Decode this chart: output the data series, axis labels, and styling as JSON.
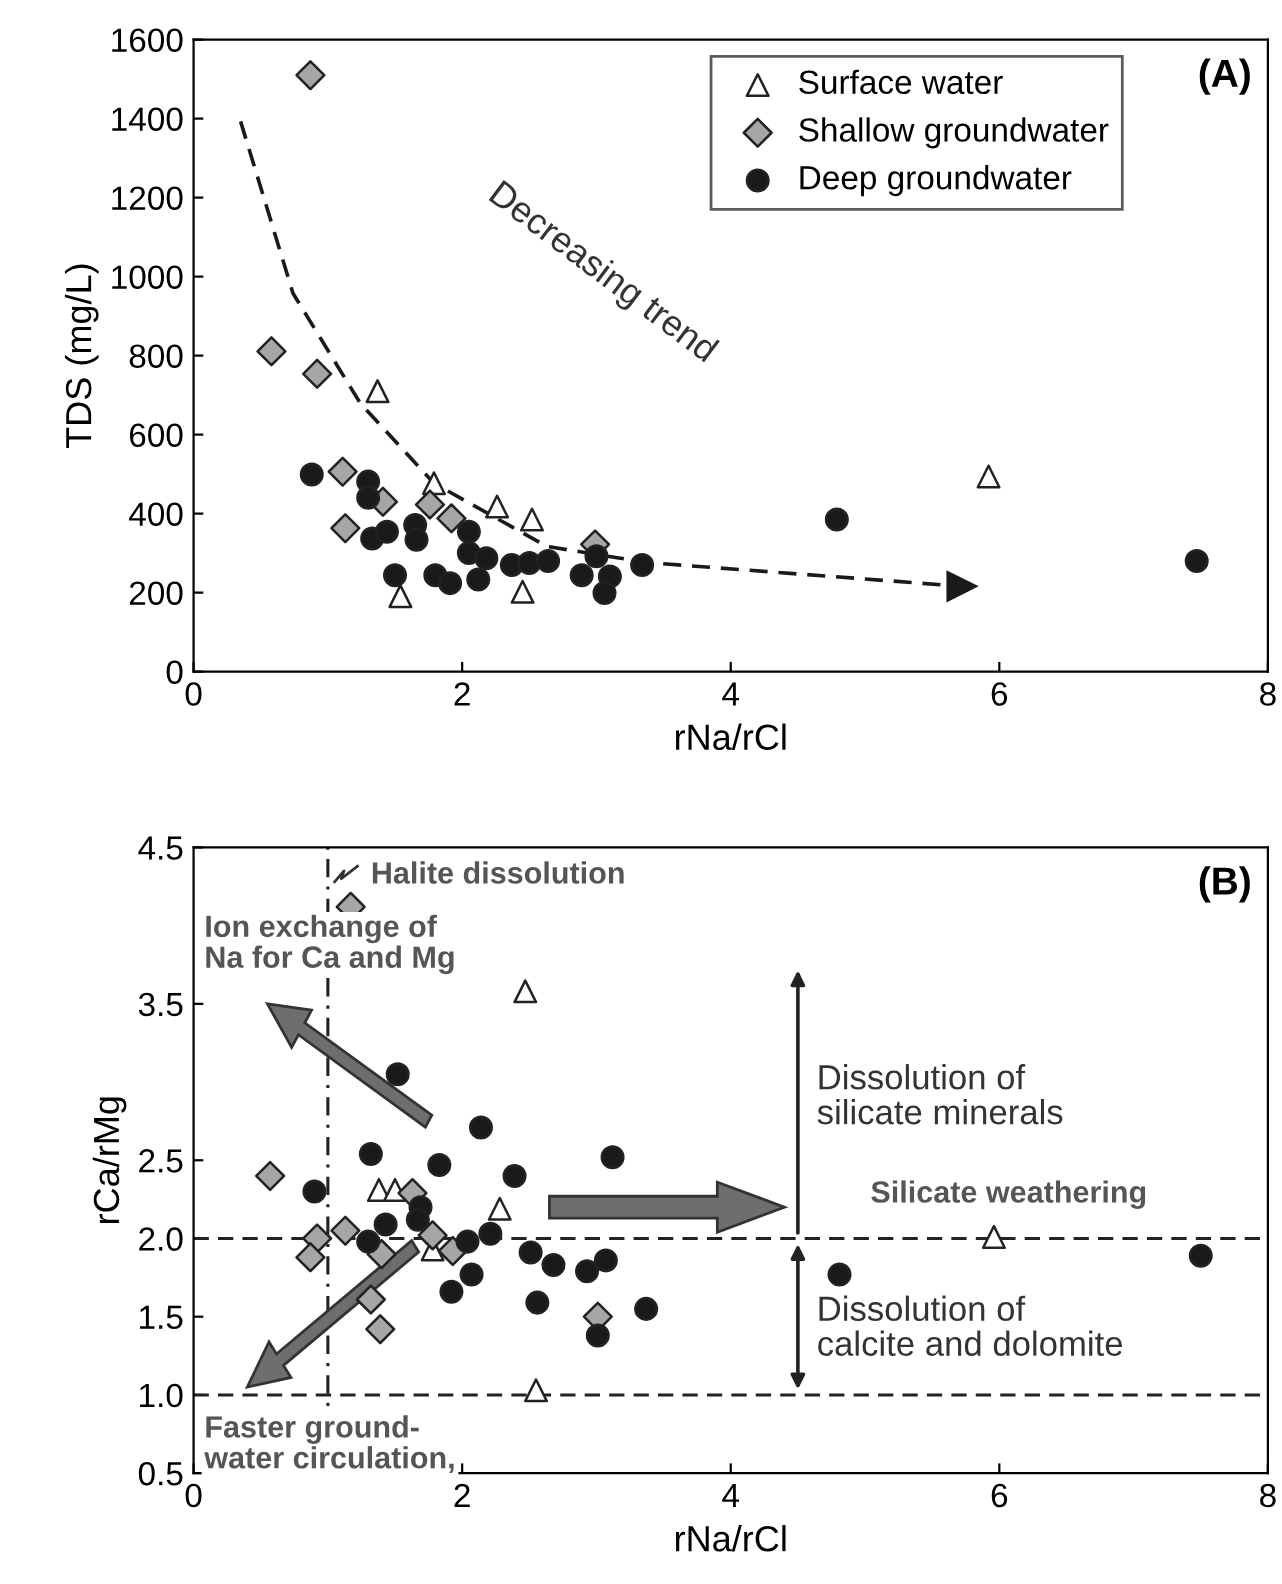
{
  "chart_data": [
    {
      "type": "scatter",
      "xlabel": "rNa/rCl",
      "ylabel": "TDS (mg/L)",
      "xlim": [
        0,
        8
      ],
      "xticks": [
        0,
        2,
        4,
        6,
        8
      ],
      "ylim": [
        0,
        1600
      ],
      "yticks": [
        0,
        200,
        400,
        600,
        800,
        1000,
        1200,
        1400,
        1600
      ],
      "grid": false,
      "legend": "top right",
      "annotations": [
        "(A)",
        "Decreasing trend"
      ],
      "series": [
        {
          "name": "Surface water",
          "color": "#ffffff",
          "marker": "triangle",
          "x": [
            1.37,
            1.79,
            2.26,
            2.52,
            1.54,
            2.45,
            5.92
          ],
          "values": [
            710,
            477,
            418,
            385,
            191,
            202,
            494
          ]
        },
        {
          "name": "Shallow groundwater",
          "color": "#a6a6a6",
          "marker": "diamond",
          "x": [
            0.87,
            0.58,
            0.92,
            1.11,
            1.13,
            1.41,
            1.76,
            1.92,
            2.99
          ],
          "values": [
            1510,
            811,
            754,
            506,
            363,
            430,
            423,
            388,
            322
          ]
        },
        {
          "name": "Deep groundwater",
          "color": "#1a1a1a",
          "marker": "circle",
          "x": [
            0.88,
            1.3,
            1.3,
            1.33,
            1.44,
            1.65,
            1.66,
            1.5,
            2.05,
            2.05,
            2.18,
            1.8,
            1.91,
            2.12,
            2.37,
            2.5,
            2.64,
            2.89,
            3.0,
            3.1,
            3.06,
            3.34,
            4.79,
            7.47
          ],
          "values": [
            499,
            481,
            440,
            337,
            354,
            371,
            334,
            244,
            354,
            300,
            287,
            244,
            224,
            233,
            270,
            275,
            280,
            244,
            292,
            241,
            199,
            270,
            385,
            280
          ]
        },
        {
          "type": "line",
          "color": "#1a1a1a",
          "marker": "none",
          "line_style": "dashed",
          "x": [
            0.35,
            0.74,
            1.24,
            1.79,
            2.63,
            3.38,
            5.72
          ],
          "values": [
            1393,
            958,
            680,
            477,
            317,
            276,
            216
          ]
        }
      ]
    },
    {
      "type": "scatter",
      "xlabel": "rNa/rCl",
      "ylabel": "rCa/rMg",
      "xlim": [
        0,
        8
      ],
      "xticks": [
        0,
        2,
        4,
        6,
        8
      ],
      "ylim": [
        0.5,
        4.5
      ],
      "yticks": [
        {
          "value": 0.5,
          "label": "0.5"
        },
        {
          "value": 1.0,
          "label": "1.0"
        },
        {
          "value": 1.5,
          "label": "1.5"
        },
        {
          "value": 2.0,
          "label": "2.0"
        },
        {
          "value": 2.5,
          "label": "2.5"
        },
        {
          "value": 3.5,
          "label": "3.5"
        },
        {
          "value": 4.5,
          "label": "4.5"
        }
      ],
      "grid": false,
      "legend": false,
      "ref_lines": [
        {
          "axis": "y",
          "value": 2.0,
          "line_style": "dashed"
        },
        {
          "axis": "y",
          "value": 1.0,
          "line_style": "dashed"
        },
        {
          "axis": "x",
          "value": 1,
          "line_style": "dashdot"
        }
      ],
      "annotations": [
        "(B)",
        "Halite dissolution",
        "Ion exchange of\nNa for Ca and Mg",
        {
          "text": "Faster ground-\nwater circulation,",
          "x": 0.4,
          "y": 1.05
        },
        "Silicate weathering",
        "Dissolution of\nsilicate minerals",
        "Dissolution of\ncalcite and dolomite"
      ],
      "series": [
        {
          "color": "#ffffff",
          "marker": "triangle",
          "x": [
            2.47,
            1.38,
            1.5,
            2.28,
            1.78,
            2.55,
            5.96
          ],
          "values": [
            3.58,
            2.31,
            2.31,
            2.19,
            1.93,
            1.03,
            2.01
          ]
        },
        {
          "color": "#a6a6a6",
          "marker": "diamond",
          "x": [
            1.17,
            0.57,
            0.92,
            0.87,
            1.13,
            1.4,
            1.32,
            1.39,
            1.63,
            1.78,
            1.93,
            3.01
          ],
          "values": [
            4.12,
            2.4,
            2.0,
            1.88,
            2.05,
            1.9,
            1.61,
            1.42,
            2.29,
            2.02,
            1.92,
            1.5
          ]
        },
        {
          "color": "#1a1a1a",
          "marker": "circle",
          "x": [
            1.52,
            1.32,
            0.9,
            1.83,
            2.14,
            2.39,
            3.12,
            1.69,
            1.67,
            1.43,
            1.3,
            2.04,
            2.21,
            2.51,
            2.68,
            2.93,
            3.07,
            2.07,
            1.92,
            2.56,
            3.01,
            3.37,
            4.81,
            7.5
          ],
          "values": [
            3.05,
            2.54,
            2.3,
            2.47,
            2.71,
            2.4,
            2.52,
            2.2,
            2.12,
            2.09,
            1.98,
            1.98,
            2.03,
            1.91,
            1.83,
            1.79,
            1.86,
            1.77,
            1.66,
            1.59,
            1.38,
            1.55,
            1.77,
            1.89
          ]
        }
      ]
    }
  ]
}
